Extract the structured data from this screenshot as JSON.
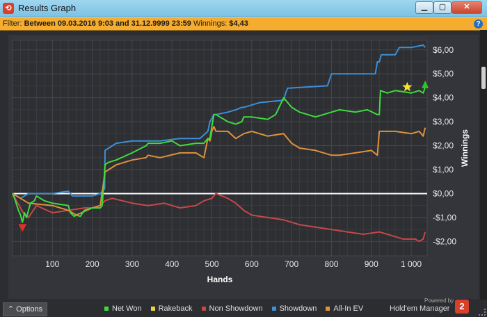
{
  "window": {
    "title": "Results Graph",
    "app_icon": "hm2-icon",
    "controls": [
      "minimize",
      "maximize",
      "close"
    ]
  },
  "filter": {
    "label": "Filter:",
    "text": "Between 09.03.2016 9:03 and 31.12.9999 23:59",
    "winnings_label": "Winnings:",
    "winnings_value": "$4,43"
  },
  "chart_data": {
    "type": "line",
    "xlabel": "Hands",
    "ylabel": "Winnings",
    "xlim": [
      0,
      1040
    ],
    "ylim": [
      -2.6,
      6.4
    ],
    "x_ticks": [
      100,
      200,
      300,
      400,
      500,
      600,
      700,
      800,
      900,
      1000
    ],
    "x_tick_labels": [
      "100",
      "200",
      "300",
      "400",
      "500",
      "600",
      "700",
      "800",
      "900",
      "1 000"
    ],
    "y_ticks": [
      -2,
      -1,
      0,
      1,
      2,
      3,
      4,
      5,
      6
    ],
    "y_tick_labels": [
      "-$2,00",
      "-$1,00",
      "$0,00",
      "$1,00",
      "$2,00",
      "$3,00",
      "$4,00",
      "$5,00",
      "$6,00"
    ],
    "grid": true,
    "legend_position": "bottom",
    "series": [
      {
        "name": "Net Won",
        "color": "#3ddc3d",
        "x": [
          0,
          5,
          15,
          20,
          25,
          30,
          35,
          45,
          55,
          60,
          80,
          100,
          140,
          145,
          155,
          160,
          170,
          180,
          200,
          220,
          225,
          232,
          240,
          260,
          300,
          335,
          340,
          370,
          400,
          420,
          460,
          480,
          490,
          495,
          500,
          505,
          510,
          520,
          540,
          560,
          575,
          580,
          600,
          640,
          660,
          680,
          700,
          720,
          760,
          800,
          820,
          860,
          890,
          915,
          920,
          923,
          940,
          960,
          1000,
          1020,
          1030,
          1035
        ],
        "y": [
          0,
          -0.2,
          -0.7,
          -0.9,
          -1.2,
          -0.8,
          -1.0,
          -0.4,
          -0.3,
          -0.1,
          -0.3,
          -0.4,
          -0.5,
          -0.8,
          -0.95,
          -0.9,
          -0.95,
          -0.7,
          -0.6,
          -0.6,
          -0.5,
          1.2,
          1.3,
          1.4,
          1.7,
          2.0,
          2.1,
          2.1,
          2.2,
          2.0,
          2.1,
          2.1,
          2.3,
          2.3,
          2.8,
          3.3,
          3.3,
          3.2,
          3.0,
          2.9,
          3.0,
          3.2,
          3.2,
          3.1,
          3.3,
          4.0,
          3.6,
          3.4,
          3.2,
          3.4,
          3.5,
          3.4,
          3.5,
          3.3,
          3.3,
          4.3,
          4.2,
          4.3,
          4.2,
          4.3,
          4.2,
          4.43
        ]
      },
      {
        "name": "Rakeback",
        "color": "#f0d23c",
        "x": [
          990
        ],
        "y": [
          4.45
        ]
      },
      {
        "name": "Non Showdown",
        "color": "#c8474a",
        "x": [
          0,
          10,
          20,
          30,
          40,
          60,
          100,
          140,
          180,
          200,
          220,
          232,
          250,
          300,
          340,
          380,
          420,
          460,
          480,
          500,
          510,
          540,
          560,
          580,
          600,
          640,
          680,
          720,
          760,
          800,
          840,
          880,
          920,
          960,
          980,
          1000,
          1010,
          1020,
          1030,
          1035
        ],
        "y": [
          0,
          -0.3,
          -0.6,
          -0.9,
          -1.0,
          -0.5,
          -0.8,
          -0.7,
          -0.6,
          -0.6,
          -0.5,
          -0.3,
          -0.2,
          -0.4,
          -0.5,
          -0.4,
          -0.6,
          -0.5,
          -0.3,
          -0.2,
          0.0,
          -0.2,
          -0.4,
          -0.7,
          -0.9,
          -1.0,
          -1.1,
          -1.3,
          -1.4,
          -1.5,
          -1.6,
          -1.7,
          -1.6,
          -1.8,
          -1.9,
          -1.9,
          -1.9,
          -2.0,
          -1.9,
          -1.6
        ]
      },
      {
        "name": "Showdown",
        "color": "#3d8fd6",
        "x": [
          0,
          20,
          40,
          100,
          140,
          150,
          160,
          200,
          220,
          231,
          232,
          260,
          300,
          335,
          340,
          370,
          420,
          455,
          470,
          490,
          495,
          505,
          510,
          540,
          560,
          575,
          580,
          620,
          680,
          685,
          690,
          790,
          800,
          880,
          910,
          915,
          920,
          925,
          960,
          970,
          1000,
          1030,
          1035
        ],
        "y": [
          0,
          -0.2,
          0,
          0,
          0.1,
          -0.1,
          -0.1,
          -0.1,
          0,
          0.2,
          1.8,
          2.1,
          2.2,
          2.2,
          2.2,
          2.2,
          2.3,
          2.3,
          2.3,
          2.6,
          3.0,
          3.3,
          3.3,
          3.4,
          3.5,
          3.6,
          3.6,
          3.8,
          3.9,
          4.2,
          4.4,
          4.5,
          5.0,
          5.0,
          5.0,
          5.5,
          5.5,
          5.8,
          5.8,
          6.1,
          6.1,
          6.2,
          6.1
        ]
      },
      {
        "name": "All-In EV",
        "color": "#e0913c",
        "x": [
          0,
          20,
          40,
          100,
          140,
          160,
          200,
          220,
          232,
          260,
          300,
          335,
          340,
          370,
          420,
          460,
          480,
          490,
          495,
          500,
          505,
          510,
          540,
          560,
          580,
          600,
          640,
          680,
          700,
          720,
          760,
          800,
          820,
          860,
          900,
          915,
          920,
          925,
          960,
          1000,
          1020,
          1030,
          1035
        ],
        "y": [
          0,
          -0.2,
          -0.4,
          -0.5,
          -0.7,
          -0.9,
          -0.6,
          -0.5,
          0.9,
          1.2,
          1.4,
          1.5,
          1.6,
          1.5,
          1.7,
          1.7,
          1.5,
          2.3,
          2.2,
          2.6,
          2.8,
          2.6,
          2.6,
          2.3,
          2.5,
          2.6,
          2.4,
          2.5,
          2.1,
          1.9,
          1.8,
          1.6,
          1.6,
          1.7,
          1.8,
          1.6,
          2.6,
          2.6,
          2.6,
          2.5,
          2.6,
          2.4,
          2.75
        ]
      }
    ],
    "markers": [
      {
        "shape": "triangle-down",
        "color": "#e0302a",
        "x": 25,
        "y": -1.45
      },
      {
        "shape": "star",
        "color": "#f5e52a",
        "x": 990,
        "y": 4.45
      },
      {
        "shape": "triangle-up",
        "color": "#2fc42f",
        "x": 1035,
        "y": 4.55
      }
    ]
  },
  "legend": [
    {
      "label": "Net Won",
      "color": "#3ddc3d"
    },
    {
      "label": "Rakeback",
      "color": "#f0d23c"
    },
    {
      "label": "Non Showdown",
      "color": "#c8474a"
    },
    {
      "label": "Showdown",
      "color": "#3d8fd6"
    },
    {
      "label": "All-In EV",
      "color": "#e0913c"
    }
  ],
  "footer": {
    "options_label": "Options",
    "brand_small": "Powered by",
    "brand": "Hold'em Manager",
    "brand_number": "2"
  }
}
